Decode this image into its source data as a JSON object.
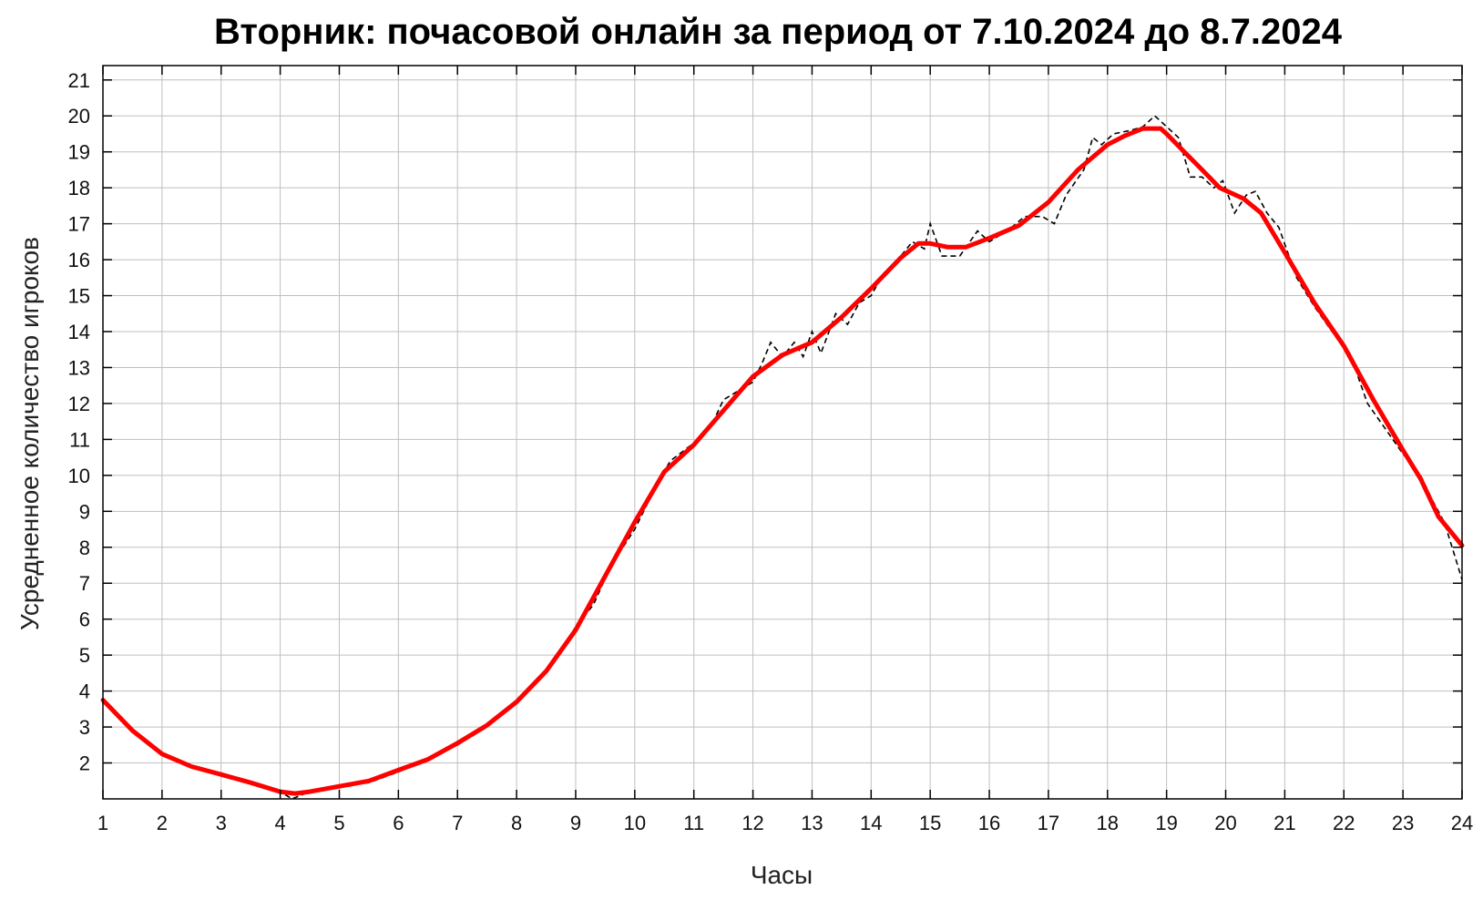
{
  "chart_data": {
    "type": "line",
    "title": "Вторник: почасовой онлайн за период от 7.10.2024 до 8.7.2024",
    "xlabel": "Часы",
    "ylabel": "Усредненное количество игроков",
    "xlim": [
      1,
      24
    ],
    "ylim": [
      1,
      21.4
    ],
    "x_ticks": [
      1,
      2,
      3,
      4,
      5,
      6,
      7,
      8,
      9,
      10,
      11,
      12,
      13,
      14,
      15,
      16,
      17,
      18,
      19,
      20,
      21,
      22,
      23,
      24
    ],
    "y_ticks": [
      2,
      3,
      4,
      5,
      6,
      7,
      8,
      9,
      10,
      11,
      12,
      13,
      14,
      15,
      16,
      17,
      18,
      19,
      20,
      21
    ],
    "grid": true,
    "series": [
      {
        "style": "dashed",
        "color": "#000000",
        "points": [
          [
            1,
            3.7
          ],
          [
            1.5,
            2.9
          ],
          [
            2,
            2.2
          ],
          [
            2.5,
            1.9
          ],
          [
            3,
            1.7
          ],
          [
            3.5,
            1.45
          ],
          [
            4,
            1.2
          ],
          [
            4.2,
            1.0
          ],
          [
            4.5,
            1.2
          ],
          [
            5,
            1.35
          ],
          [
            5.5,
            1.45
          ],
          [
            6,
            1.75
          ],
          [
            6.5,
            2.1
          ],
          [
            7,
            2.5
          ],
          [
            7.5,
            3.0
          ],
          [
            8,
            3.7
          ],
          [
            8.5,
            4.6
          ],
          [
            8.8,
            5.2
          ],
          [
            9,
            5.8
          ],
          [
            9.3,
            6.4
          ],
          [
            9.6,
            7.5
          ],
          [
            10,
            8.5
          ],
          [
            10.3,
            9.5
          ],
          [
            10.6,
            10.4
          ],
          [
            11,
            10.9
          ],
          [
            11.3,
            11.4
          ],
          [
            11.5,
            12.1
          ],
          [
            11.7,
            12.3
          ],
          [
            12,
            12.6
          ],
          [
            12.15,
            13.1
          ],
          [
            12.3,
            13.7
          ],
          [
            12.5,
            13.3
          ],
          [
            12.7,
            13.7
          ],
          [
            12.85,
            13.3
          ],
          [
            13,
            14.0
          ],
          [
            13.15,
            13.4
          ],
          [
            13.4,
            14.5
          ],
          [
            13.6,
            14.2
          ],
          [
            13.8,
            14.8
          ],
          [
            14,
            15.0
          ],
          [
            14.2,
            15.6
          ],
          [
            14.5,
            16.1
          ],
          [
            14.7,
            16.5
          ],
          [
            14.9,
            16.3
          ],
          [
            15,
            17.0
          ],
          [
            15.2,
            16.1
          ],
          [
            15.5,
            16.1
          ],
          [
            15.8,
            16.8
          ],
          [
            16,
            16.5
          ],
          [
            16.3,
            16.8
          ],
          [
            16.6,
            17.2
          ],
          [
            16.9,
            17.2
          ],
          [
            17.1,
            17.0
          ],
          [
            17.3,
            17.8
          ],
          [
            17.6,
            18.5
          ],
          [
            17.75,
            19.4
          ],
          [
            17.9,
            19.2
          ],
          [
            18.1,
            19.5
          ],
          [
            18.4,
            19.6
          ],
          [
            18.6,
            19.7
          ],
          [
            18.8,
            20.0
          ],
          [
            19,
            19.7
          ],
          [
            19.2,
            19.4
          ],
          [
            19.4,
            18.3
          ],
          [
            19.6,
            18.3
          ],
          [
            19.8,
            18.0
          ],
          [
            19.95,
            18.2
          ],
          [
            20.15,
            17.3
          ],
          [
            20.35,
            17.8
          ],
          [
            20.5,
            17.9
          ],
          [
            20.7,
            17.3
          ],
          [
            20.9,
            16.9
          ],
          [
            21.2,
            15.5
          ],
          [
            21.5,
            14.7
          ],
          [
            21.8,
            14.0
          ],
          [
            22.1,
            13.4
          ],
          [
            22.4,
            12.0
          ],
          [
            22.7,
            11.3
          ],
          [
            23,
            10.6
          ],
          [
            23.3,
            10.0
          ],
          [
            23.5,
            9.3
          ],
          [
            23.7,
            8.7
          ],
          [
            23.85,
            7.9
          ],
          [
            24,
            7.1
          ]
        ]
      },
      {
        "style": "solid",
        "color": "#ff0000",
        "points": [
          [
            1,
            3.75
          ],
          [
            1.5,
            2.9
          ],
          [
            2,
            2.25
          ],
          [
            2.5,
            1.9
          ],
          [
            3,
            1.68
          ],
          [
            3.5,
            1.45
          ],
          [
            4,
            1.2
          ],
          [
            4.25,
            1.15
          ],
          [
            4.5,
            1.2
          ],
          [
            5,
            1.35
          ],
          [
            5.5,
            1.5
          ],
          [
            6,
            1.8
          ],
          [
            6.5,
            2.1
          ],
          [
            7,
            2.55
          ],
          [
            7.5,
            3.05
          ],
          [
            8,
            3.7
          ],
          [
            8.5,
            4.55
          ],
          [
            9,
            5.7
          ],
          [
            9.5,
            7.2
          ],
          [
            10,
            8.7
          ],
          [
            10.5,
            10.1
          ],
          [
            11,
            10.85
          ],
          [
            11.5,
            11.8
          ],
          [
            12,
            12.75
          ],
          [
            12.5,
            13.35
          ],
          [
            13,
            13.7
          ],
          [
            13.5,
            14.4
          ],
          [
            14,
            15.2
          ],
          [
            14.5,
            16.05
          ],
          [
            14.8,
            16.45
          ],
          [
            15,
            16.45
          ],
          [
            15.3,
            16.35
          ],
          [
            15.6,
            16.35
          ],
          [
            16,
            16.6
          ],
          [
            16.5,
            16.95
          ],
          [
            17,
            17.6
          ],
          [
            17.5,
            18.5
          ],
          [
            18,
            19.2
          ],
          [
            18.3,
            19.45
          ],
          [
            18.6,
            19.65
          ],
          [
            18.9,
            19.65
          ],
          [
            19,
            19.5
          ],
          [
            19.3,
            19.0
          ],
          [
            19.6,
            18.5
          ],
          [
            19.9,
            18.0
          ],
          [
            20.3,
            17.7
          ],
          [
            20.6,
            17.3
          ],
          [
            21,
            16.2
          ],
          [
            21.5,
            14.8
          ],
          [
            22,
            13.6
          ],
          [
            22.5,
            12.1
          ],
          [
            23,
            10.7
          ],
          [
            23.3,
            9.9
          ],
          [
            23.6,
            8.85
          ],
          [
            24,
            8.05
          ]
        ]
      }
    ]
  }
}
